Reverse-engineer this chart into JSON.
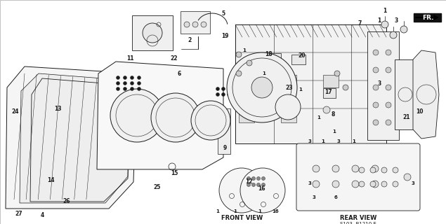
{
  "bg_color": "#ffffff",
  "line_color": "#1a1a1a",
  "fig_width": 6.35,
  "fig_height": 3.2,
  "dpi": 100,
  "bottom_left_label": "FRONT VIEW",
  "bottom_right_label": "REAR VIEW",
  "part_number": "S103- B1210 E",
  "fr_label": "FR."
}
